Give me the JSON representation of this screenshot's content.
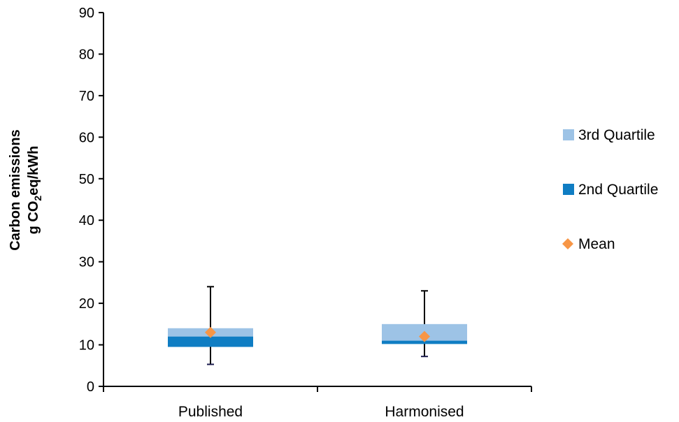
{
  "chart_data": {
    "type": "box",
    "ylabel_line1": "Carbon emissions",
    "ylabel_line2": {
      "prefix": "g CO",
      "subscript": "2",
      "suffix": "eq/kWh"
    },
    "ylim": [
      0,
      90
    ],
    "yticks": [
      0,
      10,
      20,
      30,
      40,
      50,
      60,
      70,
      80,
      90
    ],
    "categories": [
      "Published",
      "Harmonised"
    ],
    "boxes": [
      {
        "category": "Published",
        "min": 5.3,
        "q1": 9.5,
        "median": 12,
        "q3": 14,
        "max": 24,
        "mean": 13
      },
      {
        "category": "Harmonised",
        "min": 7.2,
        "q1": 10.2,
        "median": 11,
        "q3": 15,
        "max": 23,
        "mean": 12
      }
    ],
    "legend": [
      {
        "label": "3rd Quartile",
        "color": "#9dc3e6",
        "marker": "square"
      },
      {
        "label": "2nd Quartile",
        "color": "#0f7dc3",
        "marker": "square"
      },
      {
        "label": "Mean",
        "color": "#f79646",
        "marker": "diamond"
      }
    ],
    "legend_position": "right",
    "grid": false
  }
}
